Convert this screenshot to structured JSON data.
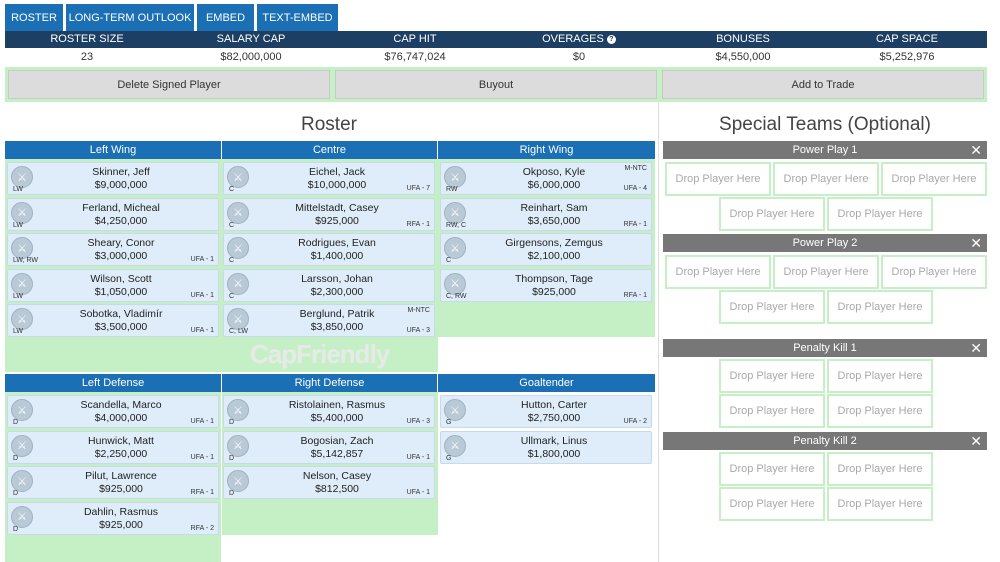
{
  "tabs": [
    {
      "label": "ROSTER"
    },
    {
      "label": "LONG-TERM OUTLOOK"
    },
    {
      "label": "EMBED"
    },
    {
      "label": "TEXT-EMBED"
    }
  ],
  "stats": {
    "headers": [
      "ROSTER SIZE",
      "SALARY CAP",
      "CAP HIT",
      "OVERAGES",
      "BONUSES",
      "CAP SPACE"
    ],
    "values": [
      "23",
      "$82,000,000",
      "$76,747,024",
      "$0",
      "$4,550,000",
      "$5,252,976"
    ],
    "help_icon": "?"
  },
  "actions": {
    "delete": "Delete Signed Player",
    "buyout": "Buyout",
    "trade": "Add to Trade"
  },
  "roster_title": "Roster",
  "special_title": "Special Teams (Optional)",
  "watermark": "CapFriendly",
  "forwards": {
    "left_wing": {
      "title": "Left Wing",
      "players": [
        {
          "name": "Skinner, Jeff",
          "salary": "$9,000,000",
          "pos": "LW",
          "ct": "",
          "tag": ""
        },
        {
          "name": "Ferland, Micheal",
          "salary": "$4,250,000",
          "pos": "LW",
          "ct": "",
          "tag": ""
        },
        {
          "name": "Sheary, Conor",
          "salary": "$3,000,000",
          "pos": "LW, RW",
          "ct": "UFA - 1",
          "tag": ""
        },
        {
          "name": "Wilson, Scott",
          "salary": "$1,050,000",
          "pos": "LW",
          "ct": "UFA - 1",
          "tag": ""
        },
        {
          "name": "Sobotka, Vladimír",
          "salary": "$3,500,000",
          "pos": "LW",
          "ct": "UFA - 1",
          "tag": ""
        }
      ]
    },
    "centre": {
      "title": "Centre",
      "players": [
        {
          "name": "Eichel, Jack",
          "salary": "$10,000,000",
          "pos": "C",
          "ct": "UFA - 7",
          "tag": ""
        },
        {
          "name": "Mittelstadt, Casey",
          "salary": "$925,000",
          "pos": "C",
          "ct": "RFA - 1",
          "tag": ""
        },
        {
          "name": "Rodrigues, Evan",
          "salary": "$1,400,000",
          "pos": "C",
          "ct": "",
          "tag": ""
        },
        {
          "name": "Larsson, Johan",
          "salary": "$2,300,000",
          "pos": "C",
          "ct": "",
          "tag": ""
        },
        {
          "name": "Berglund, Patrik",
          "salary": "$3,850,000",
          "pos": "C, LW",
          "ct": "UFA - 3",
          "tag": "M-NTC"
        }
      ]
    },
    "right_wing": {
      "title": "Right Wing",
      "players": [
        {
          "name": "Okposo, Kyle",
          "salary": "$6,000,000",
          "pos": "RW",
          "ct": "UFA - 4",
          "tag": "M-NTC"
        },
        {
          "name": "Reinhart, Sam",
          "salary": "$3,650,000",
          "pos": "RW, C",
          "ct": "RFA - 1",
          "tag": ""
        },
        {
          "name": "Girgensons, Zemgus",
          "salary": "$2,100,000",
          "pos": "C",
          "ct": "",
          "tag": ""
        },
        {
          "name": "Thompson, Tage",
          "salary": "$925,000",
          "pos": "C, RW",
          "ct": "RFA - 1",
          "tag": ""
        }
      ]
    }
  },
  "defense": {
    "left_defense": {
      "title": "Left Defense",
      "players": [
        {
          "name": "Scandella, Marco",
          "salary": "$4,000,000",
          "pos": "D",
          "ct": "UFA - 1",
          "tag": ""
        },
        {
          "name": "Hunwick, Matt",
          "salary": "$2,250,000",
          "pos": "D",
          "ct": "UFA - 1",
          "tag": ""
        },
        {
          "name": "Pilut, Lawrence",
          "salary": "$925,000",
          "pos": "D",
          "ct": "RFA - 1",
          "tag": ""
        },
        {
          "name": "Dahlin, Rasmus",
          "salary": "$925,000",
          "pos": "D",
          "ct": "RFA - 2",
          "tag": ""
        }
      ]
    },
    "right_defense": {
      "title": "Right Defense",
      "players": [
        {
          "name": "Ristolainen, Rasmus",
          "salary": "$5,400,000",
          "pos": "D",
          "ct": "UFA - 3",
          "tag": ""
        },
        {
          "name": "Bogosian, Zach",
          "salary": "$5,142,857",
          "pos": "D",
          "ct": "UFA - 1",
          "tag": ""
        },
        {
          "name": "Nelson, Casey",
          "salary": "$812,500",
          "pos": "D",
          "ct": "UFA - 1",
          "tag": ""
        }
      ]
    },
    "goaltender": {
      "title": "Goaltender",
      "players": [
        {
          "name": "Hutton, Carter",
          "salary": "$2,750,000",
          "pos": "G",
          "ct": "UFA - 2",
          "tag": ""
        },
        {
          "name": "Ullmark, Linus",
          "salary": "$1,800,000",
          "pos": "G",
          "ct": "",
          "tag": ""
        }
      ]
    }
  },
  "special_teams": [
    {
      "title": "Power Play 1",
      "slots": 5
    },
    {
      "title": "Power Play 2",
      "slots": 5
    },
    {
      "title": "Penalty Kill 1",
      "slots": 4
    },
    {
      "title": "Penalty Kill 2",
      "slots": 4
    }
  ],
  "drop_label": "Drop Player Here",
  "close_glyph": "✕"
}
